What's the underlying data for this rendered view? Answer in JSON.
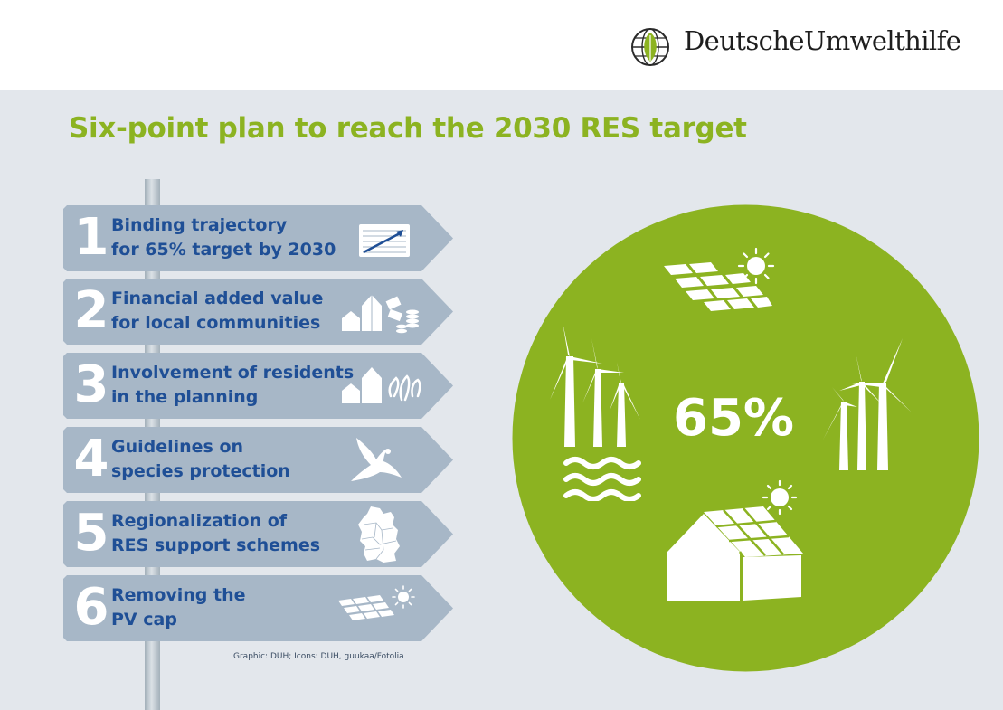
{
  "header": {
    "logo_text": "DeutscheUmwelthilfe"
  },
  "title": "Six-point plan to reach the 2030 RES target",
  "signs": [
    {
      "number": "1",
      "line1": "Binding trajectory",
      "line2": "for 65% target by 2030",
      "icon": "trend-chart-icon"
    },
    {
      "number": "2",
      "line1": "Financial added value",
      "line2": "for local communities",
      "icon": "houses-money-icon"
    },
    {
      "number": "3",
      "line1": "Involvement of residents",
      "line2": "in the planning",
      "icon": "houses-people-icon"
    },
    {
      "number": "4",
      "line1": "Guidelines on",
      "line2": "species protection",
      "icon": "eagle-icon"
    },
    {
      "number": "5",
      "line1": "Regionalization of",
      "line2": "RES support schemes",
      "icon": "germany-map-icon"
    },
    {
      "number": "6",
      "line1": "Removing the",
      "line2": "PV cap",
      "icon": "solar-panel-sun-icon"
    }
  ],
  "credit": "Graphic: DUH; Icons: DUH, guukaa/Fotolia",
  "circle": {
    "percent": "65%",
    "color": "#8cb321"
  },
  "colors": {
    "accent_green": "#8cb321",
    "sign_blue": "#1f4f96",
    "sign_fill": "#a7b7c7",
    "panel_bg": "#e3e7ec"
  }
}
